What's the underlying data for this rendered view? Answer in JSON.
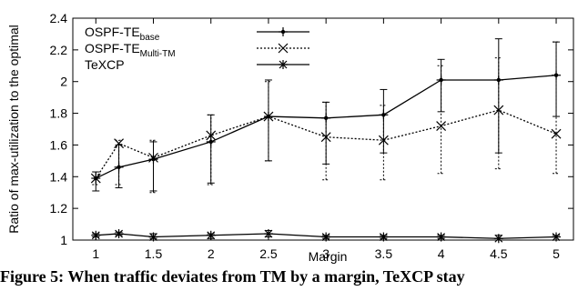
{
  "chart_data": {
    "type": "line",
    "xlabel": "Margin",
    "ylabel": "Ratio of max-utilization to the optimal",
    "xlim": [
      0.8,
      5.15
    ],
    "ylim": [
      1.0,
      2.4
    ],
    "xticks": [
      "1",
      "1.5",
      "2",
      "2.5",
      "3",
      "3.5",
      "4",
      "4.5",
      "5"
    ],
    "yticks": [
      "1",
      "1.2",
      "1.4",
      "1.6",
      "1.8",
      "2",
      "2.2",
      "2.4"
    ],
    "legend_position": "top-left",
    "grid": false,
    "series": [
      {
        "name": "OSPF-TE",
        "name_sub": "base",
        "style": "solid",
        "marker": "plus",
        "x": [
          1,
          1.2,
          1.5,
          2,
          2.5,
          3,
          3.5,
          4,
          4.5,
          5
        ],
        "y": [
          1.39,
          1.46,
          1.51,
          1.62,
          1.78,
          1.77,
          1.79,
          2.01,
          2.01,
          2.04
        ],
        "err_low": [
          1.31,
          1.33,
          1.31,
          1.36,
          1.5,
          1.48,
          1.55,
          1.81,
          1.55,
          1.78
        ],
        "err_high": [
          1.43,
          1.6,
          1.62,
          1.79,
          2.01,
          1.87,
          1.95,
          2.14,
          2.27,
          2.25
        ]
      },
      {
        "name": "OSPF-TE",
        "name_sub": "Multi-TM",
        "style": "dotted",
        "marker": "x",
        "x": [
          1,
          1.2,
          1.5,
          2,
          2.5,
          3,
          3.5,
          4,
          4.5,
          5
        ],
        "y": [
          1.39,
          1.61,
          1.52,
          1.66,
          1.78,
          1.65,
          1.63,
          1.72,
          1.82,
          1.67
        ],
        "err_low": [
          1.35,
          1.35,
          1.3,
          1.35,
          1.5,
          1.38,
          1.38,
          1.42,
          1.45,
          1.42
        ],
        "err_high": [
          1.43,
          1.63,
          1.63,
          1.79,
          2.0,
          1.87,
          1.85,
          2.1,
          2.15,
          2.25
        ]
      },
      {
        "name": "TeXCP",
        "name_sub": "",
        "style": "solid",
        "marker": "star",
        "x": [
          1,
          1.2,
          1.5,
          2,
          2.5,
          3,
          3.5,
          4,
          4.5,
          5
        ],
        "y": [
          1.03,
          1.04,
          1.02,
          1.03,
          1.04,
          1.02,
          1.02,
          1.02,
          1.01,
          1.02
        ],
        "err_low": [
          1.02,
          1.03,
          1.01,
          1.01,
          1.02,
          1.01,
          1.01,
          1.01,
          1.0,
          1.0
        ],
        "err_high": [
          1.04,
          1.05,
          1.04,
          1.04,
          1.06,
          1.03,
          1.03,
          1.03,
          1.03,
          1.03
        ]
      }
    ]
  },
  "caption": "Figure 5: When traffic deviates from TM by a margin, TeXCP stay"
}
